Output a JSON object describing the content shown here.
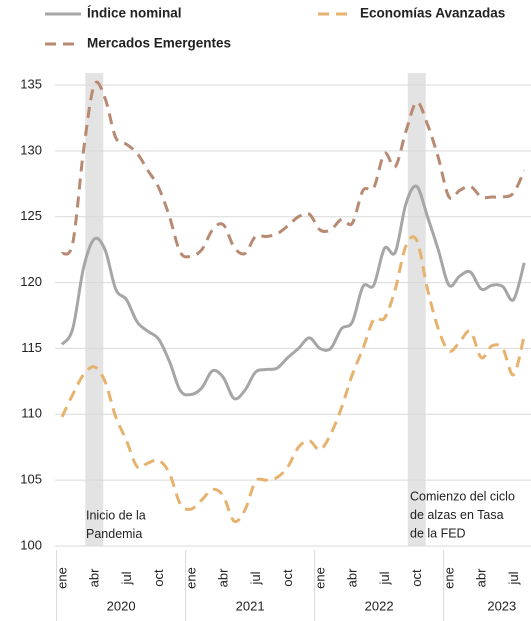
{
  "chart_data": {
    "type": "line",
    "categories": [
      "ene",
      null,
      null,
      "abr",
      null,
      null,
      "jul",
      null,
      null,
      "oct",
      null,
      null,
      "ene",
      null,
      null,
      "abr",
      null,
      null,
      "jul",
      null,
      null,
      "oct",
      null,
      null,
      "ene",
      null,
      null,
      "abr",
      null,
      null,
      "jul",
      null,
      null,
      "oct",
      null,
      null,
      "ene",
      null,
      null,
      "abr",
      null,
      null,
      "jul",
      null
    ],
    "groups": [
      "2020",
      "2021",
      "2022",
      "2023"
    ],
    "series": [
      {
        "name": "Índice nominal",
        "color": "#a6a6a6",
        "dash": false,
        "values": [
          115.3,
          116.5,
          121.1,
          123.3,
          122.5,
          119.5,
          118.7,
          117,
          116.3,
          115.7,
          114,
          111.8,
          111.5,
          112,
          113.3,
          112.8,
          111.2,
          111.8,
          113.2,
          113.4,
          113.5,
          114.3,
          115,
          115.8,
          115,
          115,
          116.5,
          117,
          119.7,
          119.8,
          122.6,
          122.3,
          126,
          127.3,
          125,
          122.5,
          119.8,
          120.5,
          120.8,
          119.5,
          119.8,
          119.7,
          118.7,
          121.5
        ]
      },
      {
        "name": "Economías Avanzadas",
        "color": "#e6b26d",
        "dash": true,
        "values": [
          109.8,
          111.5,
          113,
          113.6,
          112.5,
          109.8,
          108,
          106,
          106.3,
          106.5,
          105.5,
          103.2,
          102.8,
          103.5,
          104.3,
          103.8,
          101.9,
          102.7,
          104.9,
          105,
          105.2,
          106,
          107.5,
          108,
          107.3,
          108.5,
          110.5,
          113,
          115,
          117.2,
          117.3,
          119.5,
          122.8,
          123.2,
          119.5,
          116.5,
          114.8,
          115.5,
          116.3,
          114.3,
          115.2,
          115,
          113,
          116
        ]
      },
      {
        "name": "Mercados Emergentes",
        "color": "#b98a72",
        "dash": true,
        "values": [
          122.2,
          123,
          130,
          135,
          134,
          131,
          130.5,
          129.8,
          128.5,
          127.2,
          125,
          122.3,
          122,
          122.5,
          124,
          124.4,
          122.7,
          122.2,
          123.5,
          123.5,
          123.7,
          124.3,
          125,
          125.2,
          124,
          124,
          124.8,
          124.5,
          127,
          127.2,
          129.8,
          128.8,
          131.5,
          133.7,
          132,
          129.5,
          126.5,
          127,
          127.3,
          126.5,
          126.5,
          126.5,
          126.8,
          128.5
        ]
      }
    ],
    "annotations": [
      [
        "Inicio de la",
        "Pandemia"
      ],
      [
        "Comienzo del ciclo",
        "de alzas en Tasa",
        "de la FED"
      ]
    ],
    "ylim": [
      100,
      135
    ],
    "yticks": [
      100,
      105,
      110,
      115,
      120,
      125,
      130,
      135
    ],
    "grid": true
  }
}
